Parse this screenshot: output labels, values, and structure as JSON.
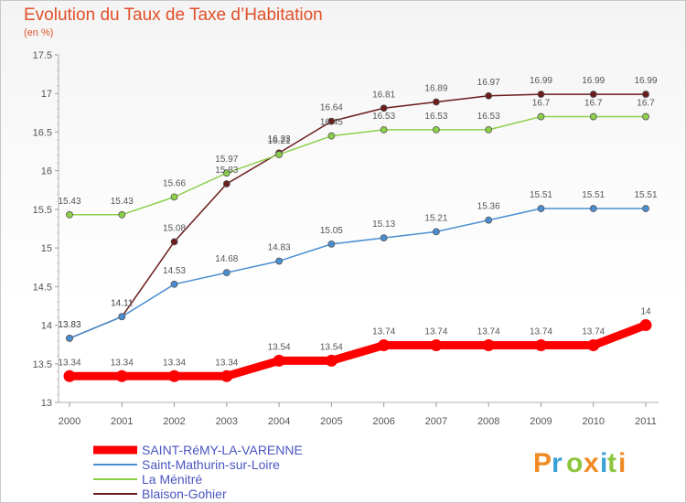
{
  "header": {
    "title": "Evolution du Taux de Taxe d’Habitation",
    "subtitle": "(en %)"
  },
  "logo": {
    "letters": [
      "P",
      "r",
      "o",
      "x",
      "i",
      "t",
      "i"
    ],
    "colors": [
      "#f08a24",
      "#3aa0d8",
      "#8cc63e",
      "#f08a24",
      "#3aa0d8",
      "#8cc63e",
      "#f08a24"
    ]
  },
  "chart_data": {
    "type": "line",
    "title": "Evolution du Taux de Taxe d’Habitation",
    "subtitle": "(en %)",
    "xlabel": "",
    "ylabel": "",
    "x": [
      "2000",
      "2001",
      "2002",
      "2003",
      "2004",
      "2005",
      "2006",
      "2007",
      "2008",
      "2009",
      "2010",
      "2011"
    ],
    "ylim": [
      13,
      17.5
    ],
    "yticks": [
      "13",
      "13.5",
      "14",
      "14.5",
      "15",
      "15.5",
      "16",
      "16.5",
      "17",
      "17.5"
    ],
    "grid": false,
    "legend_position": "bottom-left",
    "series": [
      {
        "name": "SAINT-RéMY-LA-VARENNE",
        "color": "#ff0000",
        "values": [
          13.34,
          13.34,
          13.34,
          13.34,
          13.54,
          13.54,
          13.74,
          13.74,
          13.74,
          13.74,
          13.74,
          14
        ],
        "labels": [
          "13.34",
          "13.34",
          "13.34",
          "13.34",
          "13.54",
          "13.54",
          "13.74",
          "13.74",
          "13.74",
          "13.74",
          "13.74",
          "14"
        ]
      },
      {
        "name": "Saint-Mathurin-sur-Loire",
        "color": "#4a8ed2",
        "values": [
          13.83,
          14.11,
          14.53,
          14.68,
          14.83,
          15.05,
          15.13,
          15.21,
          15.36,
          15.51,
          15.51,
          15.51
        ],
        "labels": [
          "13.83",
          "14.11",
          "14.53",
          "14.68",
          "14.83",
          "15.05",
          "15.13",
          "15.21",
          "15.36",
          "15.51",
          "15.51",
          "15.51"
        ]
      },
      {
        "name": "La Ménitré",
        "color": "#8cd04a",
        "values": [
          15.43,
          15.43,
          15.66,
          15.97,
          16.21,
          16.45,
          16.53,
          16.53,
          16.53,
          16.7,
          16.7,
          16.7
        ],
        "labels": [
          "15.43",
          "15.43",
          "15.66",
          "15.97",
          "16.21",
          "16.45",
          "16.53",
          "16.53",
          "16.53",
          "16.7",
          "16.7",
          "16.7"
        ]
      },
      {
        "name": "Blaison-Gohier",
        "color": "#6b1c1c",
        "values": [
          13.83,
          14.11,
          15.08,
          15.83,
          16.23,
          16.64,
          16.81,
          16.89,
          16.97,
          16.99,
          16.99,
          16.99
        ],
        "labels": [
          "13.83",
          "14.11",
          "15.08",
          "15.83",
          "16.23",
          "16.64",
          "16.81",
          "16.89",
          "16.97",
          "16.99",
          "16.99",
          "16.99"
        ]
      }
    ]
  }
}
